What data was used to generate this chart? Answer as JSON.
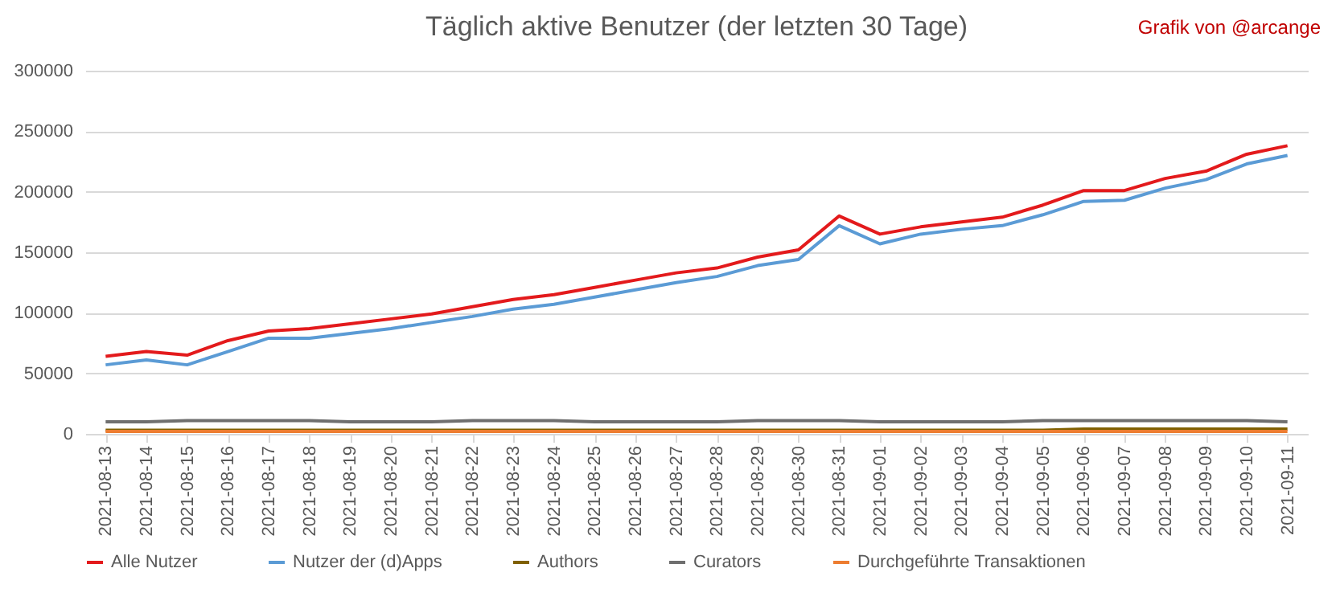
{
  "chart_data": {
    "type": "line",
    "title": "Täglich aktive Benutzer (der letzten 30 Tage)",
    "annotations": [
      "Grafik von @arcange"
    ],
    "categories": [
      "2021-08-13",
      "2021-08-14",
      "2021-08-15",
      "2021-08-16",
      "2021-08-17",
      "2021-08-18",
      "2021-08-19",
      "2021-08-20",
      "2021-08-21",
      "2021-08-22",
      "2021-08-23",
      "2021-08-24",
      "2021-08-25",
      "2021-08-26",
      "2021-08-27",
      "2021-08-28",
      "2021-08-29",
      "2021-08-30",
      "2021-08-31",
      "2021-09-01",
      "2021-09-02",
      "2021-09-03",
      "2021-09-04",
      "2021-09-05",
      "2021-09-06",
      "2021-09-07",
      "2021-09-08",
      "2021-09-09",
      "2021-09-10",
      "2021-09-11"
    ],
    "series": [
      {
        "name": "Alle Nutzer",
        "color": "#e31a1c",
        "values": [
          64000,
          68000,
          65000,
          77000,
          85000,
          87000,
          91000,
          95000,
          99000,
          105000,
          111000,
          115000,
          121000,
          127000,
          133000,
          137000,
          146000,
          152000,
          180000,
          165000,
          171000,
          175000,
          179000,
          189000,
          201000,
          201000,
          211000,
          217000,
          231000,
          238000
        ]
      },
      {
        "name": "Nutzer der (d)Apps",
        "color": "#5b9bd5",
        "values": [
          57000,
          61000,
          57000,
          68000,
          79000,
          79000,
          83000,
          87000,
          92000,
          97000,
          103000,
          107000,
          113000,
          119000,
          125000,
          130000,
          139000,
          144000,
          172000,
          157000,
          165000,
          169000,
          172000,
          181000,
          192000,
          193000,
          203000,
          210000,
          223000,
          230000
        ]
      },
      {
        "name": "Authors",
        "color": "#7f6000",
        "values": [
          3000,
          3000,
          3000,
          3000,
          3000,
          3000,
          3000,
          3000,
          3000,
          3000,
          3000,
          3000,
          3000,
          3000,
          3000,
          3000,
          3000,
          3000,
          3000,
          3000,
          3000,
          3000,
          3000,
          3000,
          4000,
          4000,
          4000,
          4000,
          4000,
          4000
        ]
      },
      {
        "name": "Curators",
        "color": "#6f6f6f",
        "values": [
          10000,
          10000,
          11000,
          11000,
          11000,
          11000,
          10000,
          10000,
          10000,
          11000,
          11000,
          11000,
          10000,
          10000,
          10000,
          10000,
          11000,
          11000,
          11000,
          10000,
          10000,
          10000,
          10000,
          11000,
          11000,
          11000,
          11000,
          11000,
          11000,
          10000
        ]
      },
      {
        "name": "Durchgeführte Transaktionen",
        "color": "#ed7d31",
        "values": [
          2000,
          2000,
          2000,
          2000,
          2000,
          2000,
          2000,
          2000,
          2000,
          2000,
          2000,
          2000,
          2000,
          2000,
          2000,
          2000,
          2000,
          2000,
          2000,
          2000,
          2000,
          2000,
          2000,
          2000,
          2000,
          2000,
          2000,
          2000,
          2000,
          2000
        ]
      }
    ],
    "ylim": [
      0,
      300000
    ],
    "yticks": [
      0,
      50000,
      100000,
      150000,
      200000,
      250000,
      300000
    ],
    "grid": "y",
    "legend": "bottom"
  }
}
